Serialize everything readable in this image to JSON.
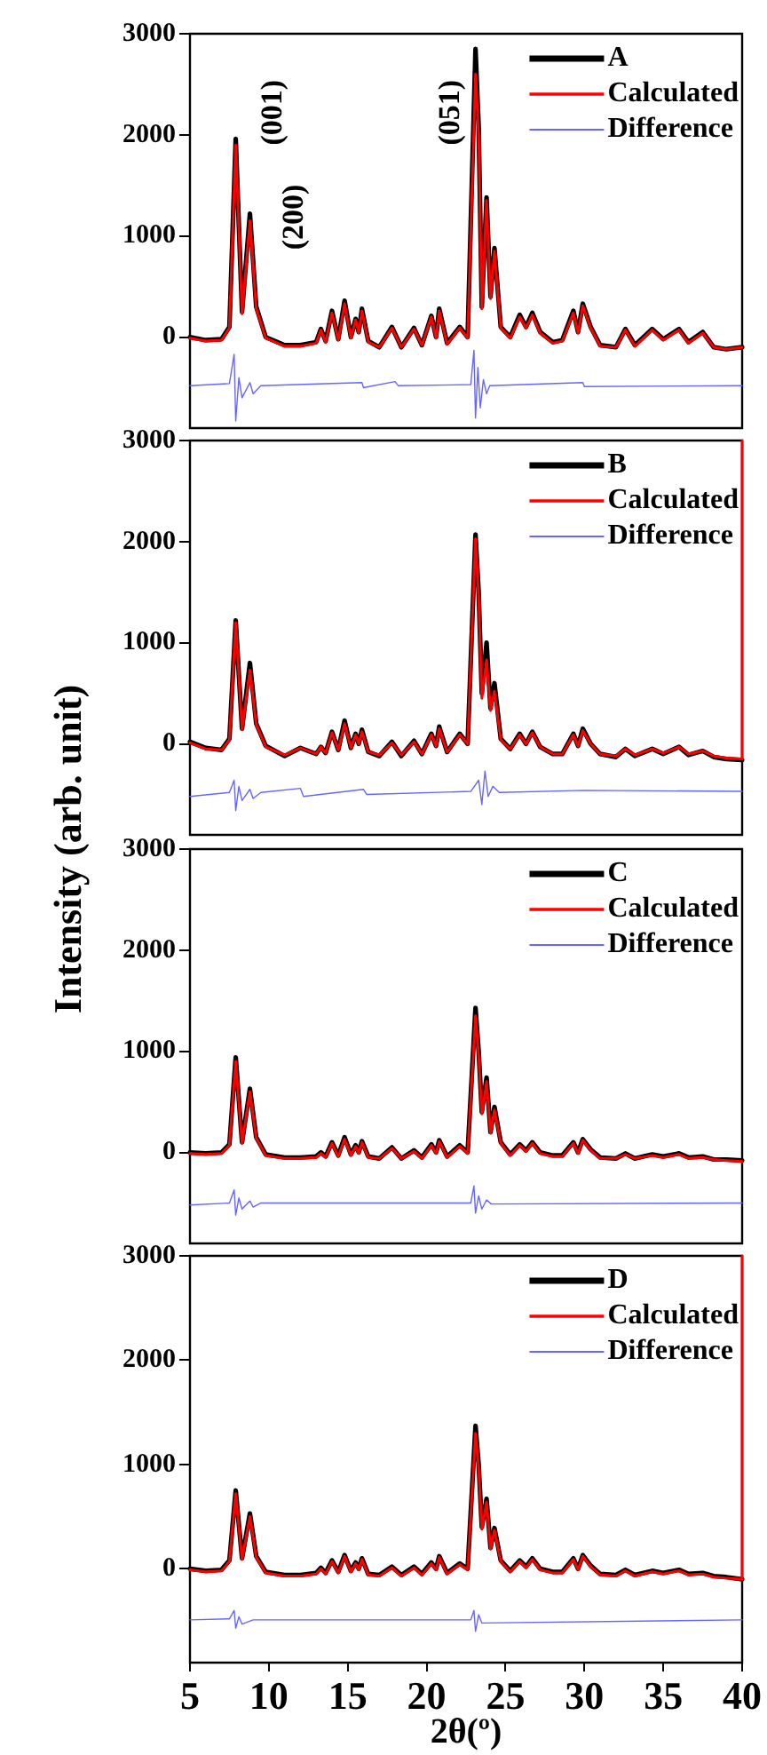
{
  "chart_data": [
    {
      "type": "line",
      "xlim": [
        5,
        40
      ],
      "xticks": [
        5,
        10,
        15,
        20,
        25,
        30,
        35,
        40
      ],
      "ylim": [
        -900,
        3000
      ],
      "yticks": [
        0,
        1000,
        2000,
        3000
      ],
      "tick_labels": "y",
      "legend": "top right",
      "marker": "none",
      "line_style": "solid",
      "x": [
        5,
        6,
        7,
        7.5,
        7.9,
        8.3,
        8.8,
        9.2,
        9.8,
        11,
        12,
        13,
        13.3,
        13.6,
        14.0,
        14.4,
        14.8,
        15.2,
        15.5,
        15.7,
        15.9,
        16.3,
        17,
        17.8,
        18.4,
        19.2,
        19.7,
        20.3,
        20.6,
        20.8,
        21.3,
        22.1,
        22.6,
        23.1,
        23.3,
        23.5,
        23.8,
        24.05,
        24.3,
        24.7,
        25.3,
        25.9,
        26.3,
        26.7,
        27.2,
        28,
        28.6,
        29.3,
        29.6,
        29.9,
        30.4,
        31,
        32,
        32.6,
        33.2,
        34.3,
        35,
        36,
        36.6,
        37.5,
        38.2,
        39,
        40
      ],
      "series": [
        {
          "name": "A",
          "color": "#000000",
          "values": [
            0,
            -30,
            -20,
            100,
            1960,
            250,
            1220,
            300,
            0,
            -80,
            -80,
            -50,
            80,
            -40,
            260,
            -20,
            360,
            0,
            180,
            50,
            280,
            -40,
            -100,
            100,
            -100,
            90,
            -80,
            210,
            0,
            280,
            -60,
            100,
            0,
            2850,
            2080,
            300,
            1380,
            400,
            880,
            100,
            0,
            220,
            100,
            240,
            50,
            -50,
            -30,
            260,
            50,
            330,
            100,
            -80,
            -100,
            80,
            -80,
            80,
            -20,
            80,
            -50,
            50,
            -100,
            -120,
            -100
          ]
        },
        {
          "name": "Calculated",
          "color": "#ff0000",
          "values": [
            -10,
            -40,
            -30,
            90,
            1900,
            230,
            1150,
            280,
            -10,
            -90,
            -90,
            -60,
            70,
            -50,
            240,
            -30,
            330,
            -10,
            170,
            40,
            260,
            -50,
            -100,
            90,
            -100,
            80,
            -80,
            200,
            -10,
            260,
            -70,
            90,
            -10,
            2600,
            2000,
            280,
            1350,
            380,
            850,
            90,
            -10,
            200,
            90,
            220,
            40,
            -60,
            -40,
            240,
            40,
            310,
            90,
            -90,
            -100,
            70,
            -90,
            70,
            -30,
            70,
            -60,
            40,
            -100,
            -120,
            -100
          ]
        },
        {
          "name": "Difference",
          "color": "#6666ff",
          "x": [
            5,
            7.5,
            7.8,
            7.9,
            8.1,
            8.3,
            8.8,
            9.0,
            9.5,
            15.9,
            16.0,
            18.0,
            18.2,
            22.8,
            23.0,
            23.1,
            23.25,
            23.4,
            23.6,
            23.8,
            24.0,
            29.9,
            30.0,
            40
          ],
          "values": [
            -480,
            -460,
            -170,
            -830,
            -400,
            -600,
            -450,
            -560,
            -480,
            -450,
            -500,
            -440,
            -480,
            -470,
            -130,
            -800,
            -300,
            -700,
            -420,
            -560,
            -480,
            -450,
            -490,
            -480
          ]
        }
      ],
      "annotations": [
        "(001)",
        "(200)",
        "(051)"
      ]
    },
    {
      "type": "line",
      "ylabel": "Intensity (arb. unit)",
      "xlim": [
        5,
        40
      ],
      "xticks": [
        5,
        10,
        15,
        20,
        25,
        30,
        35,
        40
      ],
      "ylim": [
        -900,
        3000
      ],
      "yticks": [
        0,
        1000,
        2000,
        3000
      ],
      "tick_labels": "y",
      "legend": "top right",
      "marker": "none",
      "line_style": "solid",
      "x": [
        5,
        6,
        7,
        7.5,
        7.9,
        8.3,
        8.8,
        9.2,
        9.8,
        11,
        12,
        13,
        13.3,
        13.6,
        14.0,
        14.4,
        14.8,
        15.2,
        15.5,
        15.7,
        15.9,
        16.3,
        17,
        17.8,
        18.4,
        19.2,
        19.7,
        20.3,
        20.6,
        20.8,
        21.3,
        22.1,
        22.6,
        23.1,
        23.3,
        23.5,
        23.8,
        24.05,
        24.3,
        24.7,
        25.3,
        25.9,
        26.3,
        26.7,
        27.2,
        28,
        28.6,
        29.3,
        29.6,
        29.9,
        30.4,
        31,
        32,
        32.6,
        33.2,
        34.3,
        35,
        36,
        36.6,
        37.5,
        38.2,
        39,
        40
      ],
      "series": [
        {
          "name": "B",
          "color": "#000000",
          "values": [
            20,
            -40,
            -60,
            50,
            1220,
            150,
            800,
            200,
            -20,
            -120,
            -40,
            -100,
            -30,
            -90,
            120,
            -60,
            230,
            -40,
            100,
            0,
            140,
            -80,
            -120,
            20,
            -120,
            30,
            -100,
            100,
            -20,
            170,
            -80,
            100,
            0,
            2070,
            1500,
            500,
            1000,
            350,
            600,
            50,
            -50,
            100,
            0,
            120,
            -30,
            -100,
            -100,
            100,
            -20,
            150,
            0,
            -100,
            -130,
            -50,
            -120,
            -50,
            -100,
            -30,
            -110,
            -70,
            -130,
            -150,
            -160
          ]
        },
        {
          "name": "Calculated",
          "color": "#ff0000",
          "x": [
            5,
            6,
            7,
            7.5,
            7.9,
            8.3,
            8.8,
            9.2,
            9.8,
            11,
            12,
            13,
            13.3,
            13.6,
            14.0,
            14.4,
            14.8,
            15.2,
            15.5,
            15.7,
            15.9,
            16.3,
            17,
            17.8,
            18.4,
            19.2,
            19.7,
            20.3,
            20.6,
            20.8,
            21.3,
            22.1,
            22.6,
            23.1,
            23.3,
            23.5,
            23.8,
            24.05,
            24.3,
            24.7,
            25.3,
            25.9,
            26.3,
            26.7,
            27.2,
            28,
            28.6,
            29.3,
            29.6,
            29.9,
            30.4,
            31,
            32,
            32.6,
            33.2,
            34.3,
            35,
            36,
            36.6,
            37.5,
            38.2,
            39,
            40,
            40
          ],
          "values": [
            10,
            -50,
            -60,
            40,
            1200,
            140,
            730,
            190,
            -30,
            -110,
            -40,
            -100,
            -30,
            -90,
            110,
            -60,
            200,
            -40,
            90,
            0,
            120,
            -80,
            -110,
            10,
            -110,
            20,
            -100,
            90,
            -20,
            150,
            -80,
            90,
            0,
            2030,
            1450,
            450,
            830,
            330,
            520,
            40,
            -50,
            90,
            0,
            110,
            -30,
            -100,
            -100,
            90,
            -20,
            130,
            0,
            -100,
            -120,
            -50,
            -110,
            -50,
            -90,
            -30,
            -100,
            -70,
            -120,
            -140,
            -150,
            3000
          ]
        },
        {
          "name": "Difference",
          "color": "#6666ff",
          "x": [
            5,
            7.5,
            7.8,
            7.9,
            8.1,
            8.3,
            8.8,
            9.0,
            9.5,
            12,
            12.2,
            16,
            16.2,
            22.8,
            23.3,
            23.5,
            23.7,
            23.9,
            24.2,
            24.6,
            30,
            40
          ],
          "values": [
            -520,
            -480,
            -360,
            -660,
            -420,
            -560,
            -450,
            -540,
            -480,
            -440,
            -520,
            -450,
            -500,
            -470,
            -360,
            -600,
            -270,
            -520,
            -420,
            -480,
            -460,
            -470
          ]
        }
      ]
    },
    {
      "type": "line",
      "xlim": [
        5,
        40
      ],
      "xticks": [
        5,
        10,
        15,
        20,
        25,
        30,
        35,
        40
      ],
      "ylim": [
        -900,
        3000
      ],
      "yticks": [
        0,
        1000,
        2000,
        3000
      ],
      "tick_labels": "y",
      "legend": "top right",
      "marker": "none",
      "line_style": "solid",
      "x": [
        5,
        6,
        7,
        7.5,
        7.9,
        8.3,
        8.8,
        9.2,
        9.8,
        11,
        12,
        13,
        13.3,
        13.6,
        14.0,
        14.4,
        14.8,
        15.2,
        15.5,
        15.7,
        15.9,
        16.3,
        17,
        17.8,
        18.4,
        19.2,
        19.7,
        20.3,
        20.6,
        20.8,
        21.3,
        22.1,
        22.6,
        23.1,
        23.3,
        23.5,
        23.8,
        24.05,
        24.3,
        24.7,
        25.3,
        25.9,
        26.3,
        26.7,
        27.2,
        28,
        28.6,
        29.3,
        29.6,
        29.9,
        30.4,
        31,
        32,
        32.6,
        33.2,
        34.3,
        35,
        36,
        36.6,
        37.5,
        38.2,
        39,
        40
      ],
      "series": [
        {
          "name": "C",
          "color": "#000000",
          "values": [
            0,
            -10,
            0,
            80,
            940,
            100,
            630,
            150,
            -20,
            -50,
            -50,
            -40,
            0,
            -40,
            100,
            -30,
            150,
            -20,
            70,
            0,
            110,
            -40,
            -60,
            50,
            -60,
            20,
            -50,
            80,
            0,
            120,
            -40,
            70,
            0,
            1430,
            1000,
            400,
            740,
            200,
            450,
            100,
            -20,
            80,
            20,
            100,
            0,
            -30,
            -30,
            100,
            0,
            130,
            30,
            -50,
            -60,
            -10,
            -60,
            -20,
            -40,
            -10,
            -50,
            -40,
            -70,
            -70,
            -80
          ]
        },
        {
          "name": "Calculated",
          "color": "#ff0000",
          "values": [
            -10,
            -20,
            -10,
            70,
            900,
            90,
            600,
            140,
            -30,
            -60,
            -60,
            -50,
            -10,
            -50,
            90,
            -40,
            130,
            -30,
            60,
            -10,
            100,
            -50,
            -60,
            40,
            -60,
            10,
            -60,
            70,
            -10,
            110,
            -50,
            60,
            -10,
            1350,
            960,
            380,
            700,
            190,
            420,
            90,
            -30,
            70,
            10,
            90,
            -10,
            -40,
            -40,
            90,
            -10,
            120,
            20,
            -60,
            -60,
            -20,
            -60,
            -30,
            -50,
            -20,
            -60,
            -50,
            -70,
            -80,
            -90
          ]
        },
        {
          "name": "Difference",
          "color": "#6666ff",
          "x": [
            5,
            7.5,
            7.8,
            7.9,
            8.1,
            8.3,
            8.8,
            9.0,
            9.5,
            22.8,
            23.0,
            23.1,
            23.3,
            23.5,
            23.8,
            24.1,
            40
          ],
          "values": [
            -520,
            -500,
            -370,
            -620,
            -450,
            -560,
            -480,
            -540,
            -500,
            -500,
            -330,
            -600,
            -430,
            -560,
            -470,
            -510,
            -500
          ]
        }
      ]
    },
    {
      "type": "line",
      "xlabel": "2θ(º)",
      "xlim": [
        5,
        40
      ],
      "xticks": [
        5,
        10,
        15,
        20,
        25,
        30,
        35,
        40
      ],
      "ylim": [
        -900,
        3000
      ],
      "yticks": [
        0,
        1000,
        2000,
        3000
      ],
      "legend": "top right",
      "marker": "none",
      "line_style": "solid",
      "x": [
        5,
        6,
        7,
        7.5,
        7.9,
        8.3,
        8.8,
        9.2,
        9.8,
        11,
        12,
        13,
        13.3,
        13.6,
        14.0,
        14.4,
        14.8,
        15.2,
        15.5,
        15.7,
        15.9,
        16.3,
        17,
        17.8,
        18.4,
        19.2,
        19.7,
        20.3,
        20.6,
        20.8,
        21.3,
        22.1,
        22.6,
        23.1,
        23.3,
        23.5,
        23.8,
        24.05,
        24.3,
        24.7,
        25.3,
        25.9,
        26.3,
        26.7,
        27.2,
        28,
        28.6,
        29.3,
        29.6,
        29.9,
        30.4,
        31,
        32,
        32.6,
        33.2,
        34.3,
        35,
        36,
        36.6,
        37.5,
        38.2,
        39,
        40
      ],
      "series": [
        {
          "name": "D",
          "color": "#000000",
          "values": [
            0,
            -20,
            -10,
            80,
            750,
            100,
            530,
            120,
            -30,
            -60,
            -60,
            -40,
            10,
            -40,
            80,
            -30,
            130,
            -20,
            60,
            0,
            100,
            -50,
            -60,
            20,
            -60,
            20,
            -50,
            60,
            0,
            120,
            -40,
            50,
            0,
            1370,
            1000,
            400,
            670,
            200,
            390,
            80,
            -20,
            80,
            20,
            100,
            0,
            -30,
            -30,
            100,
            0,
            130,
            30,
            -50,
            -60,
            -10,
            -60,
            -20,
            -40,
            -10,
            -50,
            -40,
            -70,
            -80,
            -100
          ]
        },
        {
          "name": "Calculated",
          "color": "#ff0000",
          "x": [
            5,
            6,
            7,
            7.5,
            7.9,
            8.3,
            8.8,
            9.2,
            9.8,
            11,
            12,
            13,
            13.3,
            13.6,
            14.0,
            14.4,
            14.8,
            15.2,
            15.5,
            15.7,
            15.9,
            16.3,
            17,
            17.8,
            18.4,
            19.2,
            19.7,
            20.3,
            20.6,
            20.8,
            21.3,
            22.1,
            22.6,
            23.1,
            23.3,
            23.5,
            23.8,
            24.05,
            24.3,
            24.7,
            25.3,
            25.9,
            26.3,
            26.7,
            27.2,
            28,
            28.6,
            29.3,
            29.6,
            29.9,
            30.4,
            31,
            32,
            32.6,
            33.2,
            34.3,
            35,
            36,
            36.6,
            37.5,
            38.2,
            39,
            40,
            40
          ],
          "values": [
            -10,
            -30,
            -20,
            70,
            720,
            90,
            500,
            110,
            -40,
            -70,
            -70,
            -50,
            0,
            -50,
            70,
            -40,
            120,
            -30,
            50,
            -10,
            90,
            -60,
            -70,
            10,
            -70,
            10,
            -60,
            50,
            -10,
            110,
            -50,
            40,
            -10,
            1300,
            960,
            380,
            640,
            190,
            370,
            70,
            -30,
            70,
            10,
            90,
            -10,
            -40,
            -40,
            90,
            -10,
            120,
            20,
            -60,
            -70,
            -20,
            -70,
            -30,
            -50,
            -20,
            -60,
            -50,
            -80,
            -90,
            -100,
            3000
          ]
        },
        {
          "name": "Difference",
          "color": "#6666ff",
          "x": [
            5,
            7.5,
            7.8,
            7.9,
            8.1,
            8.3,
            9.0,
            22.8,
            23.0,
            23.1,
            23.3,
            23.5,
            40
          ],
          "values": [
            -490,
            -480,
            -400,
            -570,
            -460,
            -530,
            -490,
            -490,
            -400,
            -600,
            -440,
            -520,
            -490
          ]
        }
      ]
    }
  ]
}
